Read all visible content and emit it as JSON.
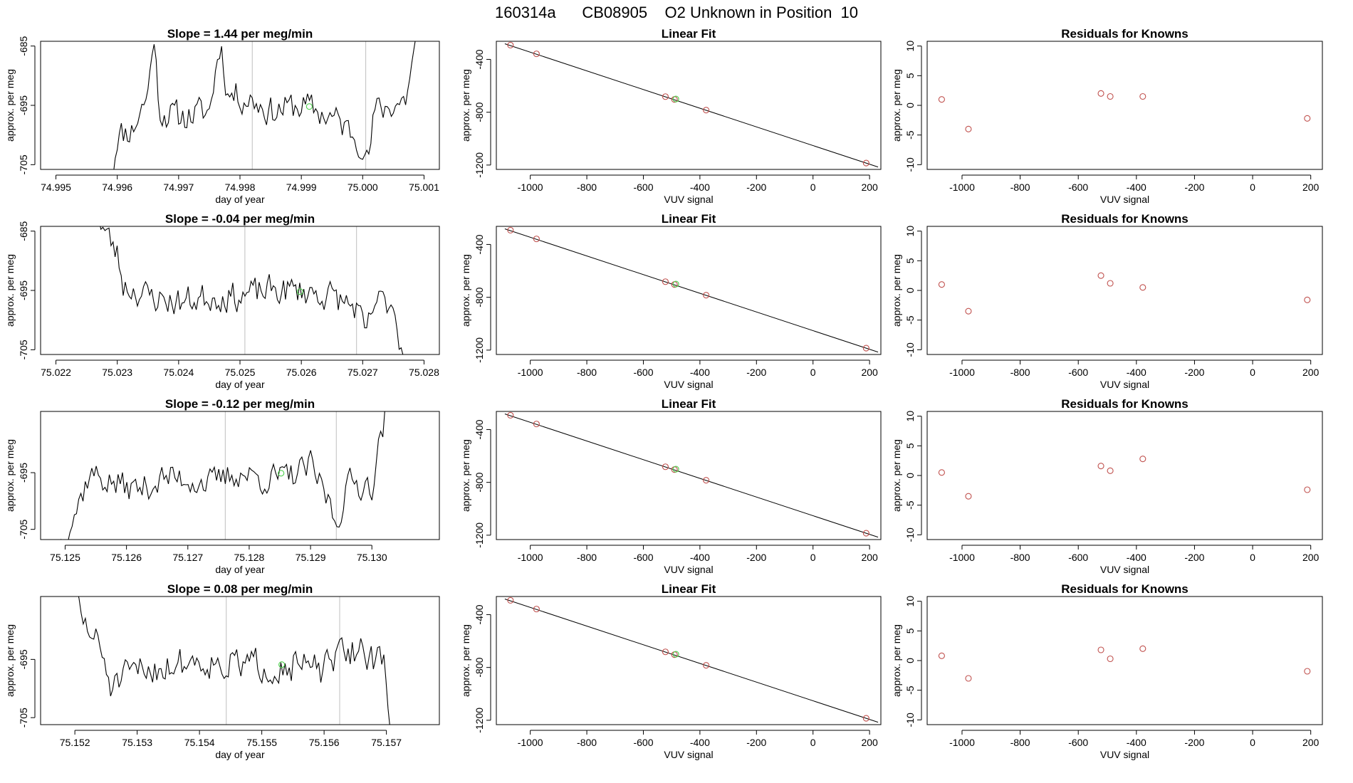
{
  "main_title": "160314a      CB08905    O2 Unknown in Position  10",
  "colors": {
    "line": "#000000",
    "known_point": "#c0504d",
    "unknown_point": "#4cd04c",
    "vline": "#bfbfbf",
    "fit_line": "#000000"
  },
  "chart_data": [
    {
      "type": "line",
      "row": 0,
      "col": 0,
      "title": "Slope =  1.44  per meg/min",
      "xlabel": "day of year",
      "ylabel": "approx. per meg",
      "xlim": [
        74.99475,
        75.00125
      ],
      "ylim": [
        -705.8,
        -684.2
      ],
      "xticks": [
        74.995,
        74.996,
        74.997,
        74.998,
        74.999,
        75.0,
        75.001
      ],
      "xtick_labels": [
        "74.995",
        "74.996",
        "74.997",
        "74.998",
        "74.999",
        "75.000",
        "75.001"
      ],
      "yticks": [
        -685,
        -695,
        -705
      ],
      "ytick_labels": [
        "-685",
        "-695",
        "-705"
      ],
      "x_start": 74.9959,
      "x_end": 75.0009,
      "seed": 11,
      "trace_anchors": [
        [
          74.9959,
          -708
        ],
        [
          74.996,
          -700
        ],
        [
          74.99625,
          -699
        ],
        [
          74.9965,
          -693
        ],
        [
          74.99658,
          -683
        ],
        [
          74.9967,
          -696
        ],
        [
          74.997,
          -697
        ],
        [
          74.9975,
          -696
        ],
        [
          74.99768,
          -684
        ],
        [
          74.9978,
          -693
        ],
        [
          74.9982,
          -694
        ],
        [
          74.9985,
          -696
        ],
        [
          74.999,
          -695
        ],
        [
          74.9995,
          -697
        ],
        [
          75.0,
          -701
        ],
        [
          75.00008,
          -705
        ],
        [
          75.0002,
          -696
        ],
        [
          75.0007,
          -694
        ],
        [
          75.0009,
          -683
        ]
      ],
      "wiggle": 2.4,
      "vlines": [
        74.9982,
        75.00005
      ],
      "unknown_points": [
        [
          74.99913,
          -695.2
        ]
      ]
    },
    {
      "type": "scatter",
      "row": 0,
      "col": 1,
      "title": "Linear Fit",
      "xlabel": "VUV signal",
      "ylabel": "approx. per meg",
      "xlim": [
        -1120,
        240
      ],
      "ylim": [
        -1233,
        -263
      ],
      "xticks": [
        -1000,
        -800,
        -600,
        -400,
        -200,
        0,
        200
      ],
      "xtick_labels": [
        "-1000",
        "-800",
        "-600",
        "-400",
        "-200",
        "0",
        "200"
      ],
      "yticks": [
        -400,
        -800,
        -1200
      ],
      "ytick_labels": [
        "-400",
        "-800",
        "-1200"
      ],
      "fit_line": [
        [
          -1090,
          -282
        ],
        [
          230,
          -1215
        ]
      ],
      "known_points": [
        [
          -1070,
          -292
        ],
        [
          -978,
          -358
        ],
        [
          -522,
          -682
        ],
        [
          -490,
          -703
        ],
        [
          -378,
          -784
        ],
        [
          188,
          -1185
        ]
      ],
      "unknown_points": [
        [
          -485,
          -700
        ]
      ]
    },
    {
      "type": "scatter",
      "row": 0,
      "col": 2,
      "title": "Residuals for Knowns",
      "xlabel": "VUV signal",
      "ylabel": "approx. per meg",
      "xlim": [
        -1120,
        240
      ],
      "ylim": [
        -10.8,
        10.8
      ],
      "xticks": [
        -1000,
        -800,
        -600,
        -400,
        -200,
        0,
        200
      ],
      "xtick_labels": [
        "-1000",
        "-800",
        "-600",
        "-400",
        "-200",
        "0",
        "200"
      ],
      "yticks": [
        10,
        5,
        0,
        -5,
        -10
      ],
      "ytick_labels": [
        "10",
        "5",
        "0",
        "-5",
        "-10"
      ],
      "known_points": [
        [
          -1070,
          1.0
        ],
        [
          -978,
          -4.0
        ],
        [
          -522,
          2.0
        ],
        [
          -490,
          1.5
        ],
        [
          -378,
          1.5
        ],
        [
          188,
          -2.2
        ]
      ]
    },
    {
      "type": "line",
      "row": 1,
      "col": 0,
      "title": "Slope =  -0.04  per meg/min",
      "xlabel": "day of year",
      "ylabel": "approx. per meg",
      "xlim": [
        75.02175,
        75.02825
      ],
      "ylim": [
        -705.8,
        -684.2
      ],
      "xticks": [
        75.022,
        75.023,
        75.024,
        75.025,
        75.026,
        75.027,
        75.028
      ],
      "xtick_labels": [
        "75.022",
        "75.023",
        "75.024",
        "75.025",
        "75.026",
        "75.027",
        "75.028"
      ],
      "yticks": [
        -685,
        -695,
        -705
      ],
      "ytick_labels": [
        "-685",
        "-695",
        "-705"
      ],
      "x_start": 75.0227,
      "x_end": 75.02766,
      "seed": 23,
      "trace_anchors": [
        [
          75.0227,
          -683
        ],
        [
          75.0228,
          -685
        ],
        [
          75.023,
          -689
        ],
        [
          75.0231,
          -694
        ],
        [
          75.0235,
          -696
        ],
        [
          75.024,
          -697
        ],
        [
          75.0245,
          -696
        ],
        [
          75.025,
          -696
        ],
        [
          75.0255,
          -695
        ],
        [
          75.026,
          -695
        ],
        [
          75.0265,
          -696
        ],
        [
          75.0269,
          -698
        ],
        [
          75.02705,
          -703
        ],
        [
          75.0272,
          -697
        ],
        [
          75.0275,
          -697
        ],
        [
          75.02765,
          -706
        ]
      ],
      "wiggle": 2.3,
      "vlines": [
        75.02508,
        75.0269
      ],
      "unknown_points": [
        [
          75.02598,
          -695.2
        ]
      ]
    },
    {
      "type": "scatter",
      "row": 1,
      "col": 1,
      "title": "Linear Fit",
      "xlabel": "VUV signal",
      "ylabel": "approx. per meg",
      "xlim": [
        -1120,
        240
      ],
      "ylim": [
        -1233,
        -263
      ],
      "xticks": [
        -1000,
        -800,
        -600,
        -400,
        -200,
        0,
        200
      ],
      "xtick_labels": [
        "-1000",
        "-800",
        "-600",
        "-400",
        "-200",
        "0",
        "200"
      ],
      "yticks": [
        -400,
        -800,
        -1200
      ],
      "ytick_labels": [
        "-400",
        "-800",
        "-1200"
      ],
      "fit_line": [
        [
          -1090,
          -282
        ],
        [
          230,
          -1215
        ]
      ],
      "known_points": [
        [
          -1070,
          -292
        ],
        [
          -978,
          -358
        ],
        [
          -522,
          -682
        ],
        [
          -490,
          -703
        ],
        [
          -378,
          -784
        ],
        [
          188,
          -1185
        ]
      ],
      "unknown_points": [
        [
          -485,
          -700
        ]
      ]
    },
    {
      "type": "scatter",
      "row": 1,
      "col": 2,
      "title": "Residuals for Knowns",
      "xlabel": "VUV signal",
      "ylabel": "approx. per meg",
      "xlim": [
        -1120,
        240
      ],
      "ylim": [
        -10.8,
        10.8
      ],
      "xticks": [
        -1000,
        -800,
        -600,
        -400,
        -200,
        0,
        200
      ],
      "xtick_labels": [
        "-1000",
        "-800",
        "-600",
        "-400",
        "-200",
        "0",
        "200"
      ],
      "yticks": [
        10,
        5,
        0,
        -5,
        -10
      ],
      "ytick_labels": [
        "10",
        "5",
        "0",
        "-5",
        "-10"
      ],
      "known_points": [
        [
          -1070,
          1.0
        ],
        [
          -978,
          -3.5
        ],
        [
          -522,
          2.5
        ],
        [
          -490,
          1.2
        ],
        [
          -378,
          0.5
        ],
        [
          188,
          -1.6
        ]
      ]
    },
    {
      "type": "line",
      "row": 2,
      "col": 0,
      "title": "Slope =  -0.12  per meg/min",
      "xlabel": "day of year",
      "ylabel": "approx. per meg",
      "xlim": [
        75.1246,
        75.1311
      ],
      "ylim": [
        -706.8,
        -684.2
      ],
      "xticks": [
        75.125,
        75.126,
        75.127,
        75.128,
        75.129,
        75.13
      ],
      "xtick_labels": [
        "75.125",
        "75.126",
        "75.127",
        "75.128",
        "75.129",
        "75.130"
      ],
      "yticks": [
        -695,
        -705
      ],
      "ytick_labels": [
        "-695",
        "-705"
      ],
      "x_start": 75.1249,
      "x_end": 75.13025,
      "seed": 37,
      "trace_anchors": [
        [
          75.1249,
          -708
        ],
        [
          75.12505,
          -704
        ],
        [
          75.1252,
          -701
        ],
        [
          75.1254,
          -695
        ],
        [
          75.1258,
          -697
        ],
        [
          75.1262,
          -698
        ],
        [
          75.1266,
          -696
        ],
        [
          75.127,
          -696
        ],
        [
          75.1274,
          -697
        ],
        [
          75.1278,
          -695
        ],
        [
          75.1282,
          -696
        ],
        [
          75.1286,
          -696
        ],
        [
          75.129,
          -694
        ],
        [
          75.1293,
          -700
        ],
        [
          75.12942,
          -704
        ],
        [
          75.1296,
          -697
        ],
        [
          75.13,
          -697
        ],
        [
          75.13025,
          -683
        ]
      ],
      "wiggle": 2.4,
      "vlines": [
        75.12761,
        75.12942
      ],
      "unknown_points": [
        [
          75.12852,
          -695.1
        ]
      ]
    },
    {
      "type": "scatter",
      "row": 2,
      "col": 1,
      "title": "Linear Fit",
      "xlabel": "VUV signal",
      "ylabel": "approx. per meg",
      "xlim": [
        -1120,
        240
      ],
      "ylim": [
        -1233,
        -263
      ],
      "xticks": [
        -1000,
        -800,
        -600,
        -400,
        -200,
        0,
        200
      ],
      "xtick_labels": [
        "-1000",
        "-800",
        "-600",
        "-400",
        "-200",
        "0",
        "200"
      ],
      "yticks": [
        -400,
        -800,
        -1200
      ],
      "ytick_labels": [
        "-400",
        "-800",
        "-1200"
      ],
      "fit_line": [
        [
          -1090,
          -282
        ],
        [
          230,
          -1215
        ]
      ],
      "known_points": [
        [
          -1070,
          -292
        ],
        [
          -978,
          -358
        ],
        [
          -522,
          -682
        ],
        [
          -490,
          -703
        ],
        [
          -378,
          -784
        ],
        [
          188,
          -1185
        ]
      ],
      "unknown_points": [
        [
          -485,
          -700
        ]
      ]
    },
    {
      "type": "scatter",
      "row": 2,
      "col": 2,
      "title": "Residuals for Knowns",
      "xlabel": "VUV signal",
      "ylabel": "approx. per meg",
      "xlim": [
        -1120,
        240
      ],
      "ylim": [
        -10.8,
        10.8
      ],
      "xticks": [
        -1000,
        -800,
        -600,
        -400,
        -200,
        0,
        200
      ],
      "xtick_labels": [
        "-1000",
        "-800",
        "-600",
        "-400",
        "-200",
        "0",
        "200"
      ],
      "yticks": [
        10,
        5,
        0,
        -5,
        -10
      ],
      "ytick_labels": [
        "10",
        "5",
        "0",
        "-5",
        "-10"
      ],
      "known_points": [
        [
          -1070,
          0.5
        ],
        [
          -978,
          -3.5
        ],
        [
          -522,
          1.6
        ],
        [
          -490,
          0.8
        ],
        [
          -378,
          2.8
        ],
        [
          188,
          -2.4
        ]
      ]
    },
    {
      "type": "line",
      "row": 3,
      "col": 0,
      "title": "Slope =  0.08  per meg/min",
      "xlabel": "day of year",
      "ylabel": "approx. per meg",
      "xlim": [
        75.15145,
        75.15785
      ],
      "ylim": [
        -706.2,
        -684.2
      ],
      "xticks": [
        75.152,
        75.153,
        75.154,
        75.155,
        75.156,
        75.157
      ],
      "xtick_labels": [
        "75.152",
        "75.153",
        "75.154",
        "75.155",
        "75.156",
        "75.157"
      ],
      "yticks": [
        -695,
        -705
      ],
      "ytick_labels": [
        "-695",
        "-705"
      ],
      "x_start": 75.152,
      "x_end": 75.15706,
      "seed": 51,
      "trace_anchors": [
        [
          75.152,
          -683
        ],
        [
          75.1521,
          -688
        ],
        [
          75.1524,
          -693
        ],
        [
          75.1526,
          -700
        ],
        [
          75.153,
          -697
        ],
        [
          75.1535,
          -696
        ],
        [
          75.154,
          -695
        ],
        [
          75.1545,
          -696
        ],
        [
          75.155,
          -696
        ],
        [
          75.1555,
          -696
        ],
        [
          75.156,
          -697
        ],
        [
          75.1563,
          -694
        ],
        [
          75.1566,
          -693
        ],
        [
          75.157,
          -697
        ],
        [
          75.15706,
          -707
        ]
      ],
      "wiggle": 2.6,
      "vlines": [
        75.15443,
        75.15625
      ],
      "unknown_points": [
        [
          75.15532,
          -695.9
        ]
      ]
    },
    {
      "type": "scatter",
      "row": 3,
      "col": 1,
      "title": "Linear Fit",
      "xlabel": "VUV signal",
      "ylabel": "approx. per meg",
      "xlim": [
        -1120,
        240
      ],
      "ylim": [
        -1233,
        -263
      ],
      "xticks": [
        -1000,
        -800,
        -600,
        -400,
        -200,
        0,
        200
      ],
      "xtick_labels": [
        "-1000",
        "-800",
        "-600",
        "-400",
        "-200",
        "0",
        "200"
      ],
      "yticks": [
        -400,
        -800,
        -1200
      ],
      "ytick_labels": [
        "-400",
        "-800",
        "-1200"
      ],
      "fit_line": [
        [
          -1090,
          -282
        ],
        [
          230,
          -1215
        ]
      ],
      "known_points": [
        [
          -1070,
          -292
        ],
        [
          -978,
          -358
        ],
        [
          -522,
          -682
        ],
        [
          -490,
          -703
        ],
        [
          -378,
          -784
        ],
        [
          188,
          -1185
        ]
      ],
      "unknown_points": [
        [
          -485,
          -700
        ]
      ]
    },
    {
      "type": "scatter",
      "row": 3,
      "col": 2,
      "title": "Residuals for Knowns",
      "xlabel": "VUV signal",
      "ylabel": "approx. per meg",
      "xlim": [
        -1120,
        240
      ],
      "ylim": [
        -10.8,
        10.8
      ],
      "xticks": [
        -1000,
        -800,
        -600,
        -400,
        -200,
        0,
        200
      ],
      "xtick_labels": [
        "-1000",
        "-800",
        "-600",
        "-400",
        "-200",
        "0",
        "200"
      ],
      "yticks": [
        10,
        5,
        0,
        -5,
        -10
      ],
      "ytick_labels": [
        "10",
        "5",
        "0",
        "-5",
        "-10"
      ],
      "known_points": [
        [
          -1070,
          0.8
        ],
        [
          -978,
          -3.0
        ],
        [
          -522,
          1.8
        ],
        [
          -490,
          0.3
        ],
        [
          -378,
          2.0
        ],
        [
          188,
          -1.8
        ]
      ]
    }
  ]
}
